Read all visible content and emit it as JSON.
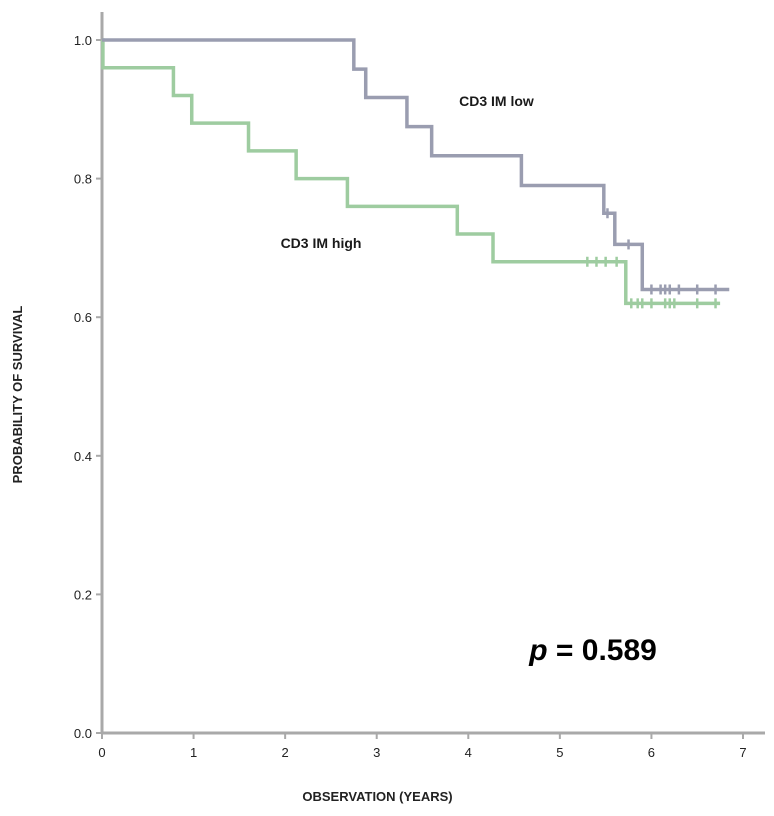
{
  "chart_data": {
    "type": "line",
    "subtype": "kaplan-meier",
    "xlabel": "OBSERVATION (YEARS)",
    "ylabel": "PROBABILITY OF SURVIVAL",
    "xlim": [
      0,
      7
    ],
    "ylim": [
      0,
      1
    ],
    "xticks": [
      0,
      1,
      2,
      3,
      4,
      5,
      6,
      7
    ],
    "yticks": [
      0.0,
      0.2,
      0.4,
      0.6,
      0.8,
      1.0
    ],
    "ytick_labels": [
      "0.0",
      "0.2",
      "0.4",
      "0.6",
      "0.8",
      "1.0"
    ],
    "xtick_labels": [
      "0",
      "1",
      "2",
      "3",
      "4",
      "5",
      "6",
      "7"
    ],
    "series": [
      {
        "name": "CD3 IM low",
        "color": "#9a9db0",
        "label_at": [
          3.9,
          0.905
        ],
        "steps": [
          [
            0,
            1.0
          ],
          [
            2.75,
            0.958
          ],
          [
            2.88,
            0.917
          ],
          [
            3.33,
            0.875
          ],
          [
            3.6,
            0.833
          ],
          [
            4.58,
            0.79
          ],
          [
            5.48,
            0.75
          ],
          [
            5.6,
            0.705
          ],
          [
            5.9,
            0.64
          ]
        ],
        "end_x": 6.85,
        "censors": [
          [
            5.52,
            0.75
          ],
          [
            5.75,
            0.705
          ],
          [
            6.0,
            0.64
          ],
          [
            6.1,
            0.64
          ],
          [
            6.15,
            0.64
          ],
          [
            6.2,
            0.64
          ],
          [
            6.3,
            0.64
          ],
          [
            6.5,
            0.64
          ],
          [
            6.7,
            0.64
          ]
        ]
      },
      {
        "name": "CD3 IM high",
        "color": "#9ecca0",
        "label_at": [
          1.95,
          0.7
        ],
        "steps": [
          [
            0,
            1.0
          ],
          [
            0.01,
            0.96
          ],
          [
            0.78,
            0.92
          ],
          [
            0.98,
            0.88
          ],
          [
            1.6,
            0.84
          ],
          [
            2.12,
            0.8
          ],
          [
            2.68,
            0.76
          ],
          [
            3.88,
            0.72
          ],
          [
            4.27,
            0.68
          ],
          [
            5.72,
            0.62
          ]
        ],
        "end_x": 6.75,
        "censors": [
          [
            5.3,
            0.68
          ],
          [
            5.4,
            0.68
          ],
          [
            5.5,
            0.68
          ],
          [
            5.62,
            0.68
          ],
          [
            5.78,
            0.62
          ],
          [
            5.85,
            0.62
          ],
          [
            5.9,
            0.62
          ],
          [
            6.0,
            0.62
          ],
          [
            6.15,
            0.62
          ],
          [
            6.2,
            0.62
          ],
          [
            6.25,
            0.62
          ],
          [
            6.5,
            0.62
          ],
          [
            6.7,
            0.62
          ]
        ]
      }
    ],
    "annotation": {
      "p_italic": "p",
      "p_rest": " = 0.589",
      "x": 5.95,
      "y": 0.105
    }
  }
}
